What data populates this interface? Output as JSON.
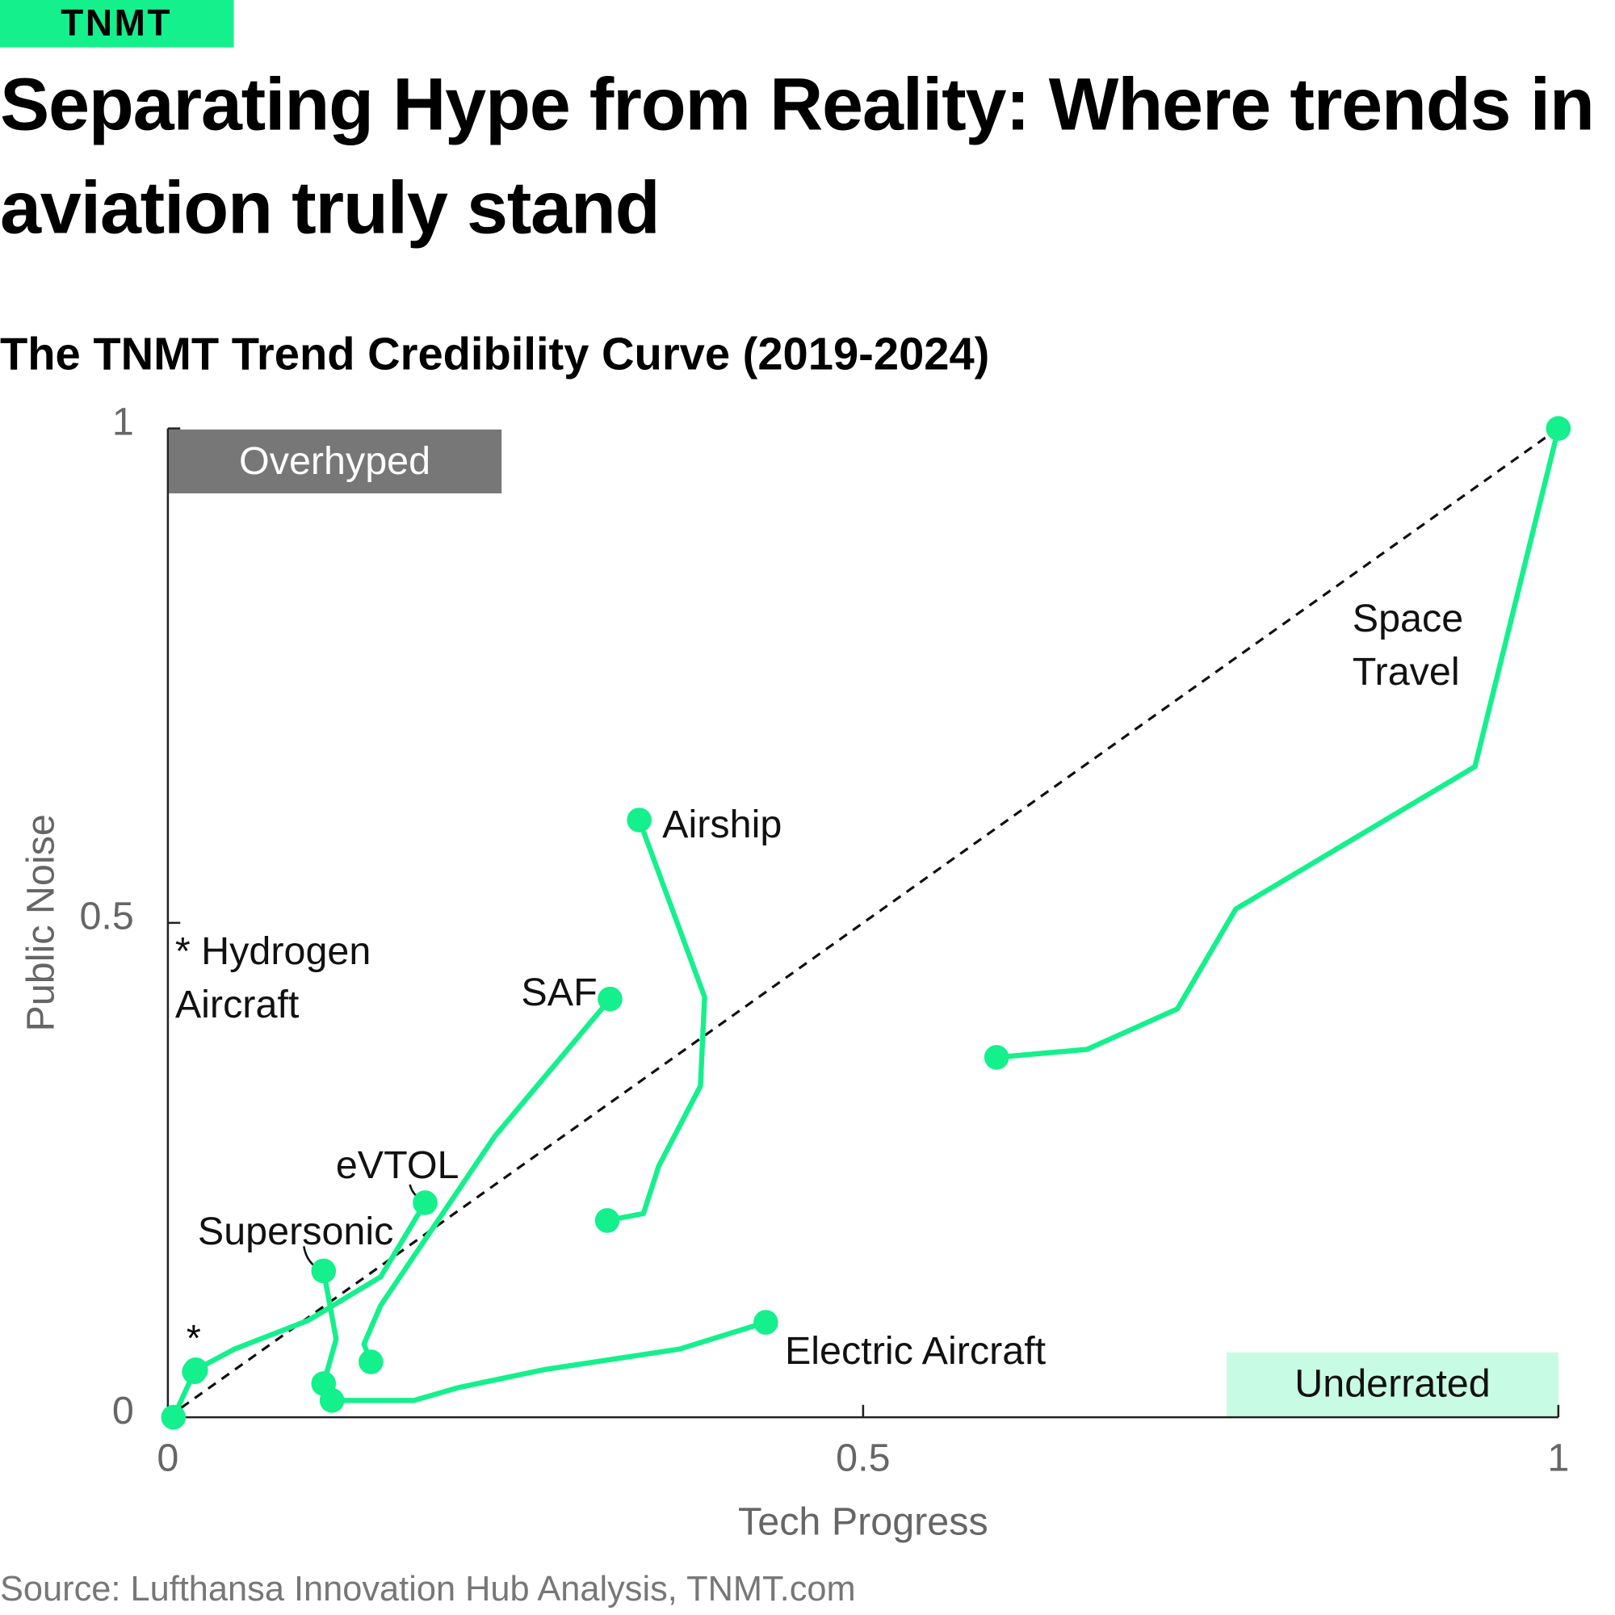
{
  "brand": "TNMT",
  "chart_data": {
    "type": "line",
    "title": "Separating Hype from Reality: Where trends in aviation truly stand",
    "subtitle": "The TNMT Trend Credibility Curve (2019-2024)",
    "x_label": "Tech Progress",
    "y_label": "Public Noise",
    "source": "Source: Lufthansa Innovation Hub Analysis, TNMT.com",
    "quadrants": {
      "top_left": "Overhyped",
      "bottom_right": "Underrated"
    },
    "annotations": [
      "*"
    ],
    "xlim": [
      0,
      1
    ],
    "ylim": [
      0,
      1
    ],
    "xticks": [
      0,
      0.5,
      1
    ],
    "yticks": [
      0,
      0.5,
      1
    ],
    "color": "#14f08c",
    "series": [
      {
        "name": "Space Travel",
        "x": [
          0.596,
          0.661,
          0.726,
          0.768,
          0.94,
          1.0
        ],
        "y": [
          0.364,
          0.372,
          0.413,
          0.514,
          0.658,
          1.0
        ]
      },
      {
        "name": "Airship",
        "x": [
          0.316,
          0.342,
          0.353,
          0.383,
          0.386,
          0.339
        ],
        "y": [
          0.199,
          0.206,
          0.254,
          0.335,
          0.425,
          0.604
        ]
      },
      {
        "name": "SAF",
        "x": [
          0.146,
          0.141,
          0.153,
          0.235,
          0.318
        ],
        "y": [
          0.056,
          0.074,
          0.113,
          0.284,
          0.423
        ]
      },
      {
        "name": "eVTOL",
        "x": [
          0.02,
          0.048,
          0.101,
          0.153,
          0.185
        ],
        "y": [
          0.048,
          0.069,
          0.098,
          0.142,
          0.217
        ]
      },
      {
        "name": "Supersonic",
        "x": [
          0.112,
          0.121,
          0.112
        ],
        "y": [
          0.034,
          0.079,
          0.148
        ]
      },
      {
        "name": "Electric Aircraft",
        "x": [
          0.118,
          0.177,
          0.209,
          0.27,
          0.368,
          0.43
        ],
        "y": [
          0.017,
          0.017,
          0.03,
          0.048,
          0.069,
          0.096
        ]
      },
      {
        "name": "* Hydrogen Aircraft",
        "x": [
          0.004,
          0.019
        ],
        "y": [
          0.0,
          0.046
        ]
      }
    ]
  }
}
